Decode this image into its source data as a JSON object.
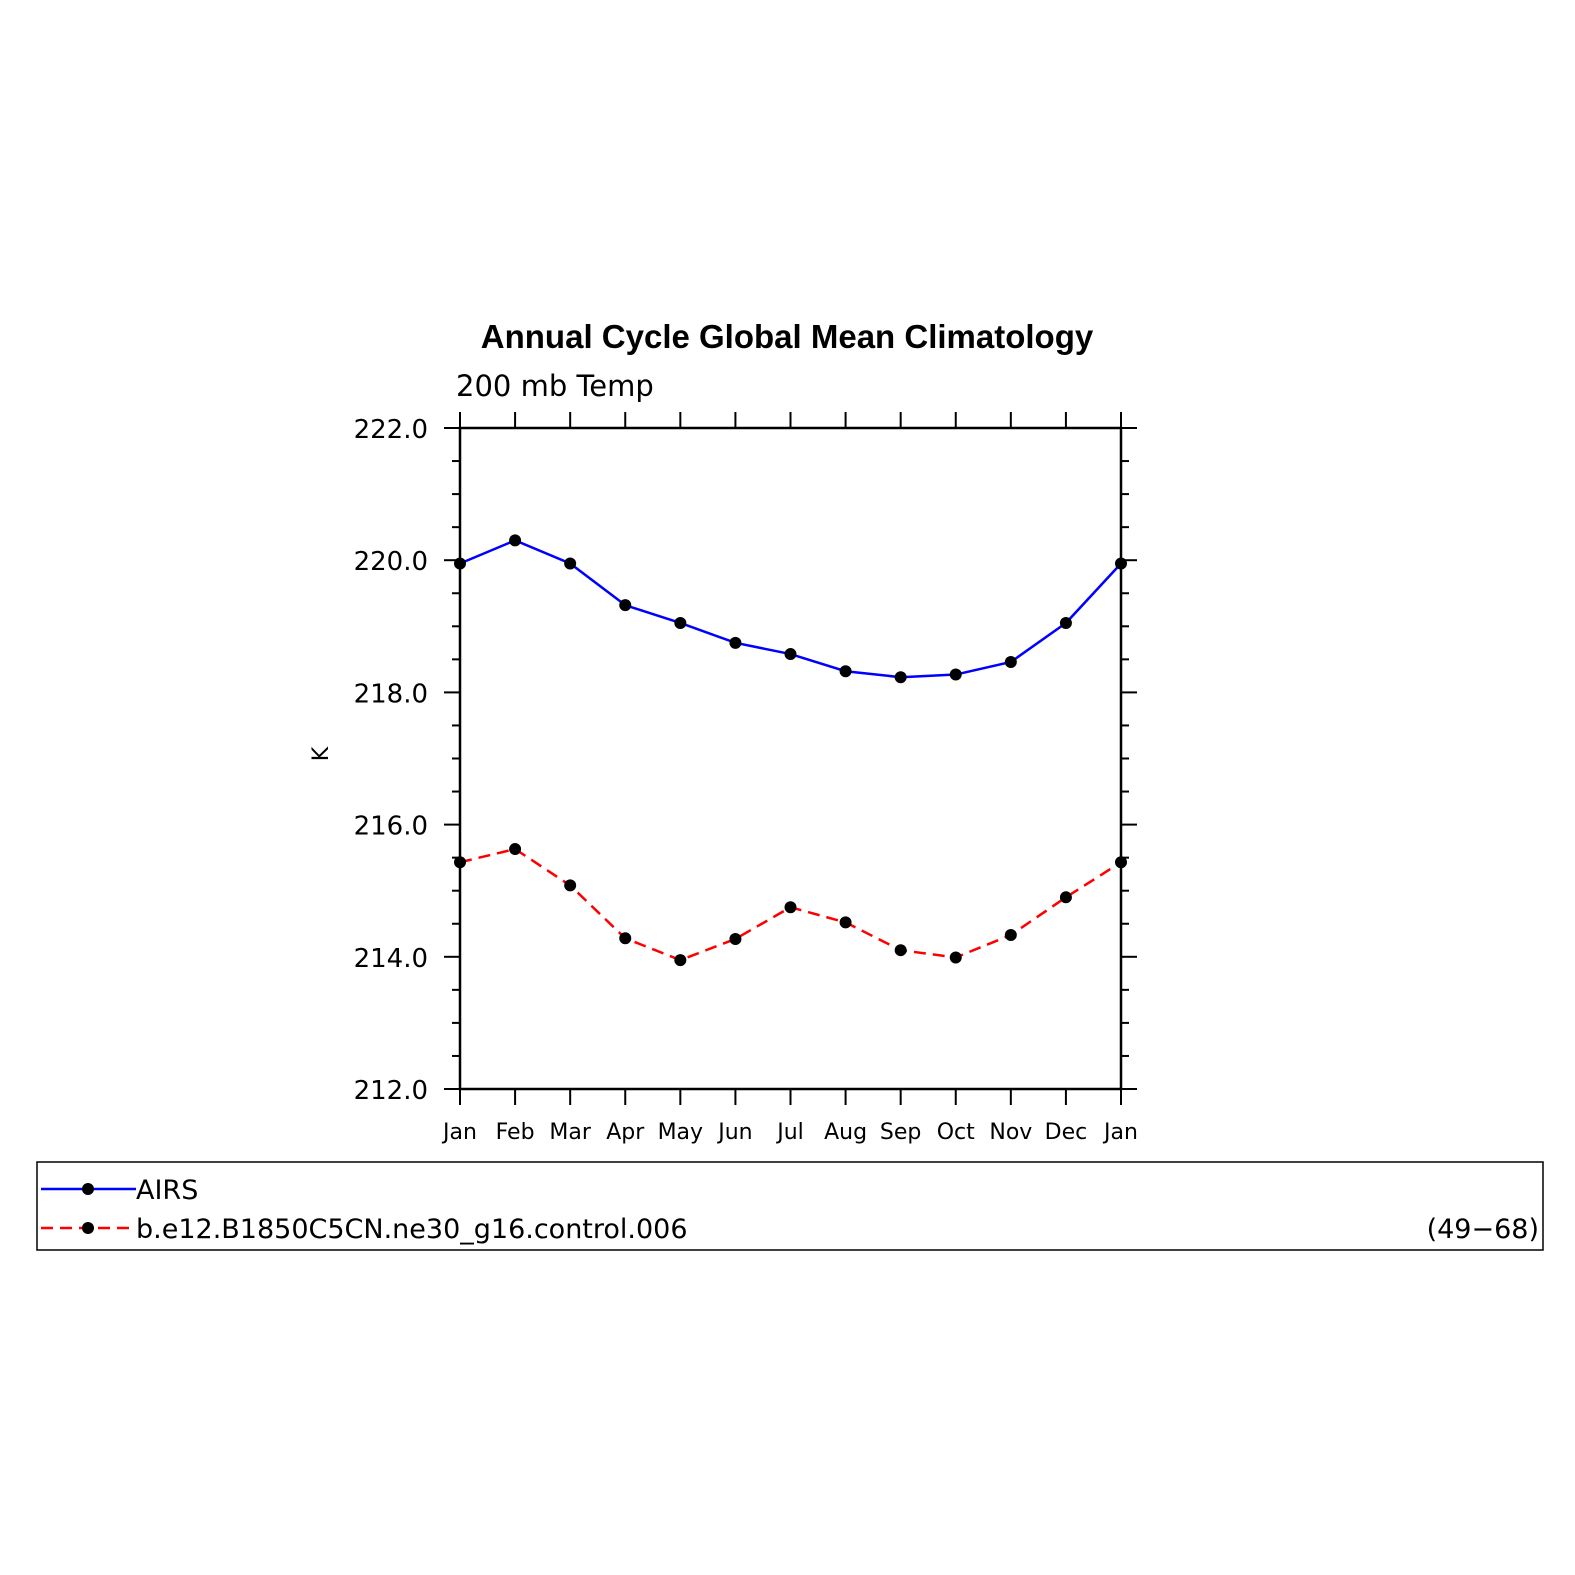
{
  "chart_data": {
    "type": "line",
    "title": "Annual Cycle Global Mean Climatology",
    "subtitle": "200 mb Temp",
    "ylabel": "K",
    "xlabel": "",
    "categories": [
      "Jan",
      "Feb",
      "Mar",
      "Apr",
      "May",
      "Jun",
      "Jul",
      "Aug",
      "Sep",
      "Oct",
      "Nov",
      "Dec",
      "Jan"
    ],
    "ylim": [
      212.0,
      222.0
    ],
    "yticks": [
      "212.0",
      "214.0",
      "216.0",
      "218.0",
      "220.0",
      "222.0"
    ],
    "grid": false,
    "legend_position": "bottom",
    "series": [
      {
        "name": "AIRS",
        "color": "#0000ff",
        "style": "solid",
        "marker": "filled-circle",
        "values": [
          219.95,
          220.3,
          219.95,
          219.32,
          219.05,
          218.75,
          218.58,
          218.32,
          218.23,
          218.27,
          218.46,
          219.05,
          219.95
        ]
      },
      {
        "name": "b.e12.B1850C5CN.ne30_g16.control.006",
        "color": "#ff0000",
        "style": "dashed",
        "marker": "filled-circle",
        "values": [
          215.43,
          215.63,
          215.08,
          214.28,
          213.95,
          214.27,
          214.75,
          214.52,
          214.1,
          213.99,
          214.33,
          214.9,
          215.43
        ]
      }
    ],
    "legend_note": "(49−68)"
  }
}
